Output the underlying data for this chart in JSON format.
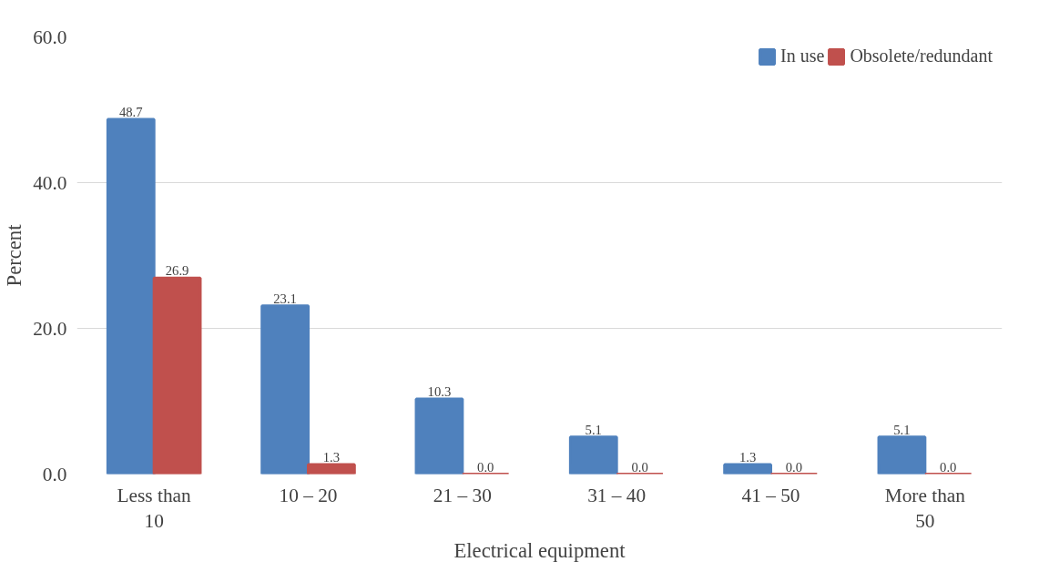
{
  "chart_data": {
    "type": "bar",
    "xlabel": "Electrical equipment",
    "ylabel": "Percent",
    "categories": [
      "Less than 10",
      "10 – 20",
      "21 – 30",
      "31 – 40",
      "41 – 50",
      "More than 50"
    ],
    "series": [
      {
        "name": "In use",
        "color": "#4f81bd",
        "values": [
          48.7,
          23.1,
          10.3,
          5.1,
          1.3,
          5.1
        ],
        "value_labels": [
          "48.7",
          "23.1",
          "10.3",
          "5.1",
          "1.3",
          "5.1"
        ]
      },
      {
        "name": "Obsolete/redundant",
        "color": "#c0504d",
        "values": [
          26.9,
          1.3,
          0.0,
          0.0,
          0.0,
          0.0
        ],
        "value_labels": [
          "26.9",
          "1.3",
          "0.0",
          "0.0",
          "0.0",
          "0.0"
        ]
      }
    ],
    "ylim": [
      0,
      60
    ],
    "yticks": [
      {
        "value": 0,
        "label": "0.0"
      },
      {
        "value": 20,
        "label": "20.0"
      },
      {
        "value": 40,
        "label": "40.0"
      },
      {
        "value": 60,
        "label": "60.0"
      }
    ],
    "grid": "y",
    "legend": "top right"
  }
}
